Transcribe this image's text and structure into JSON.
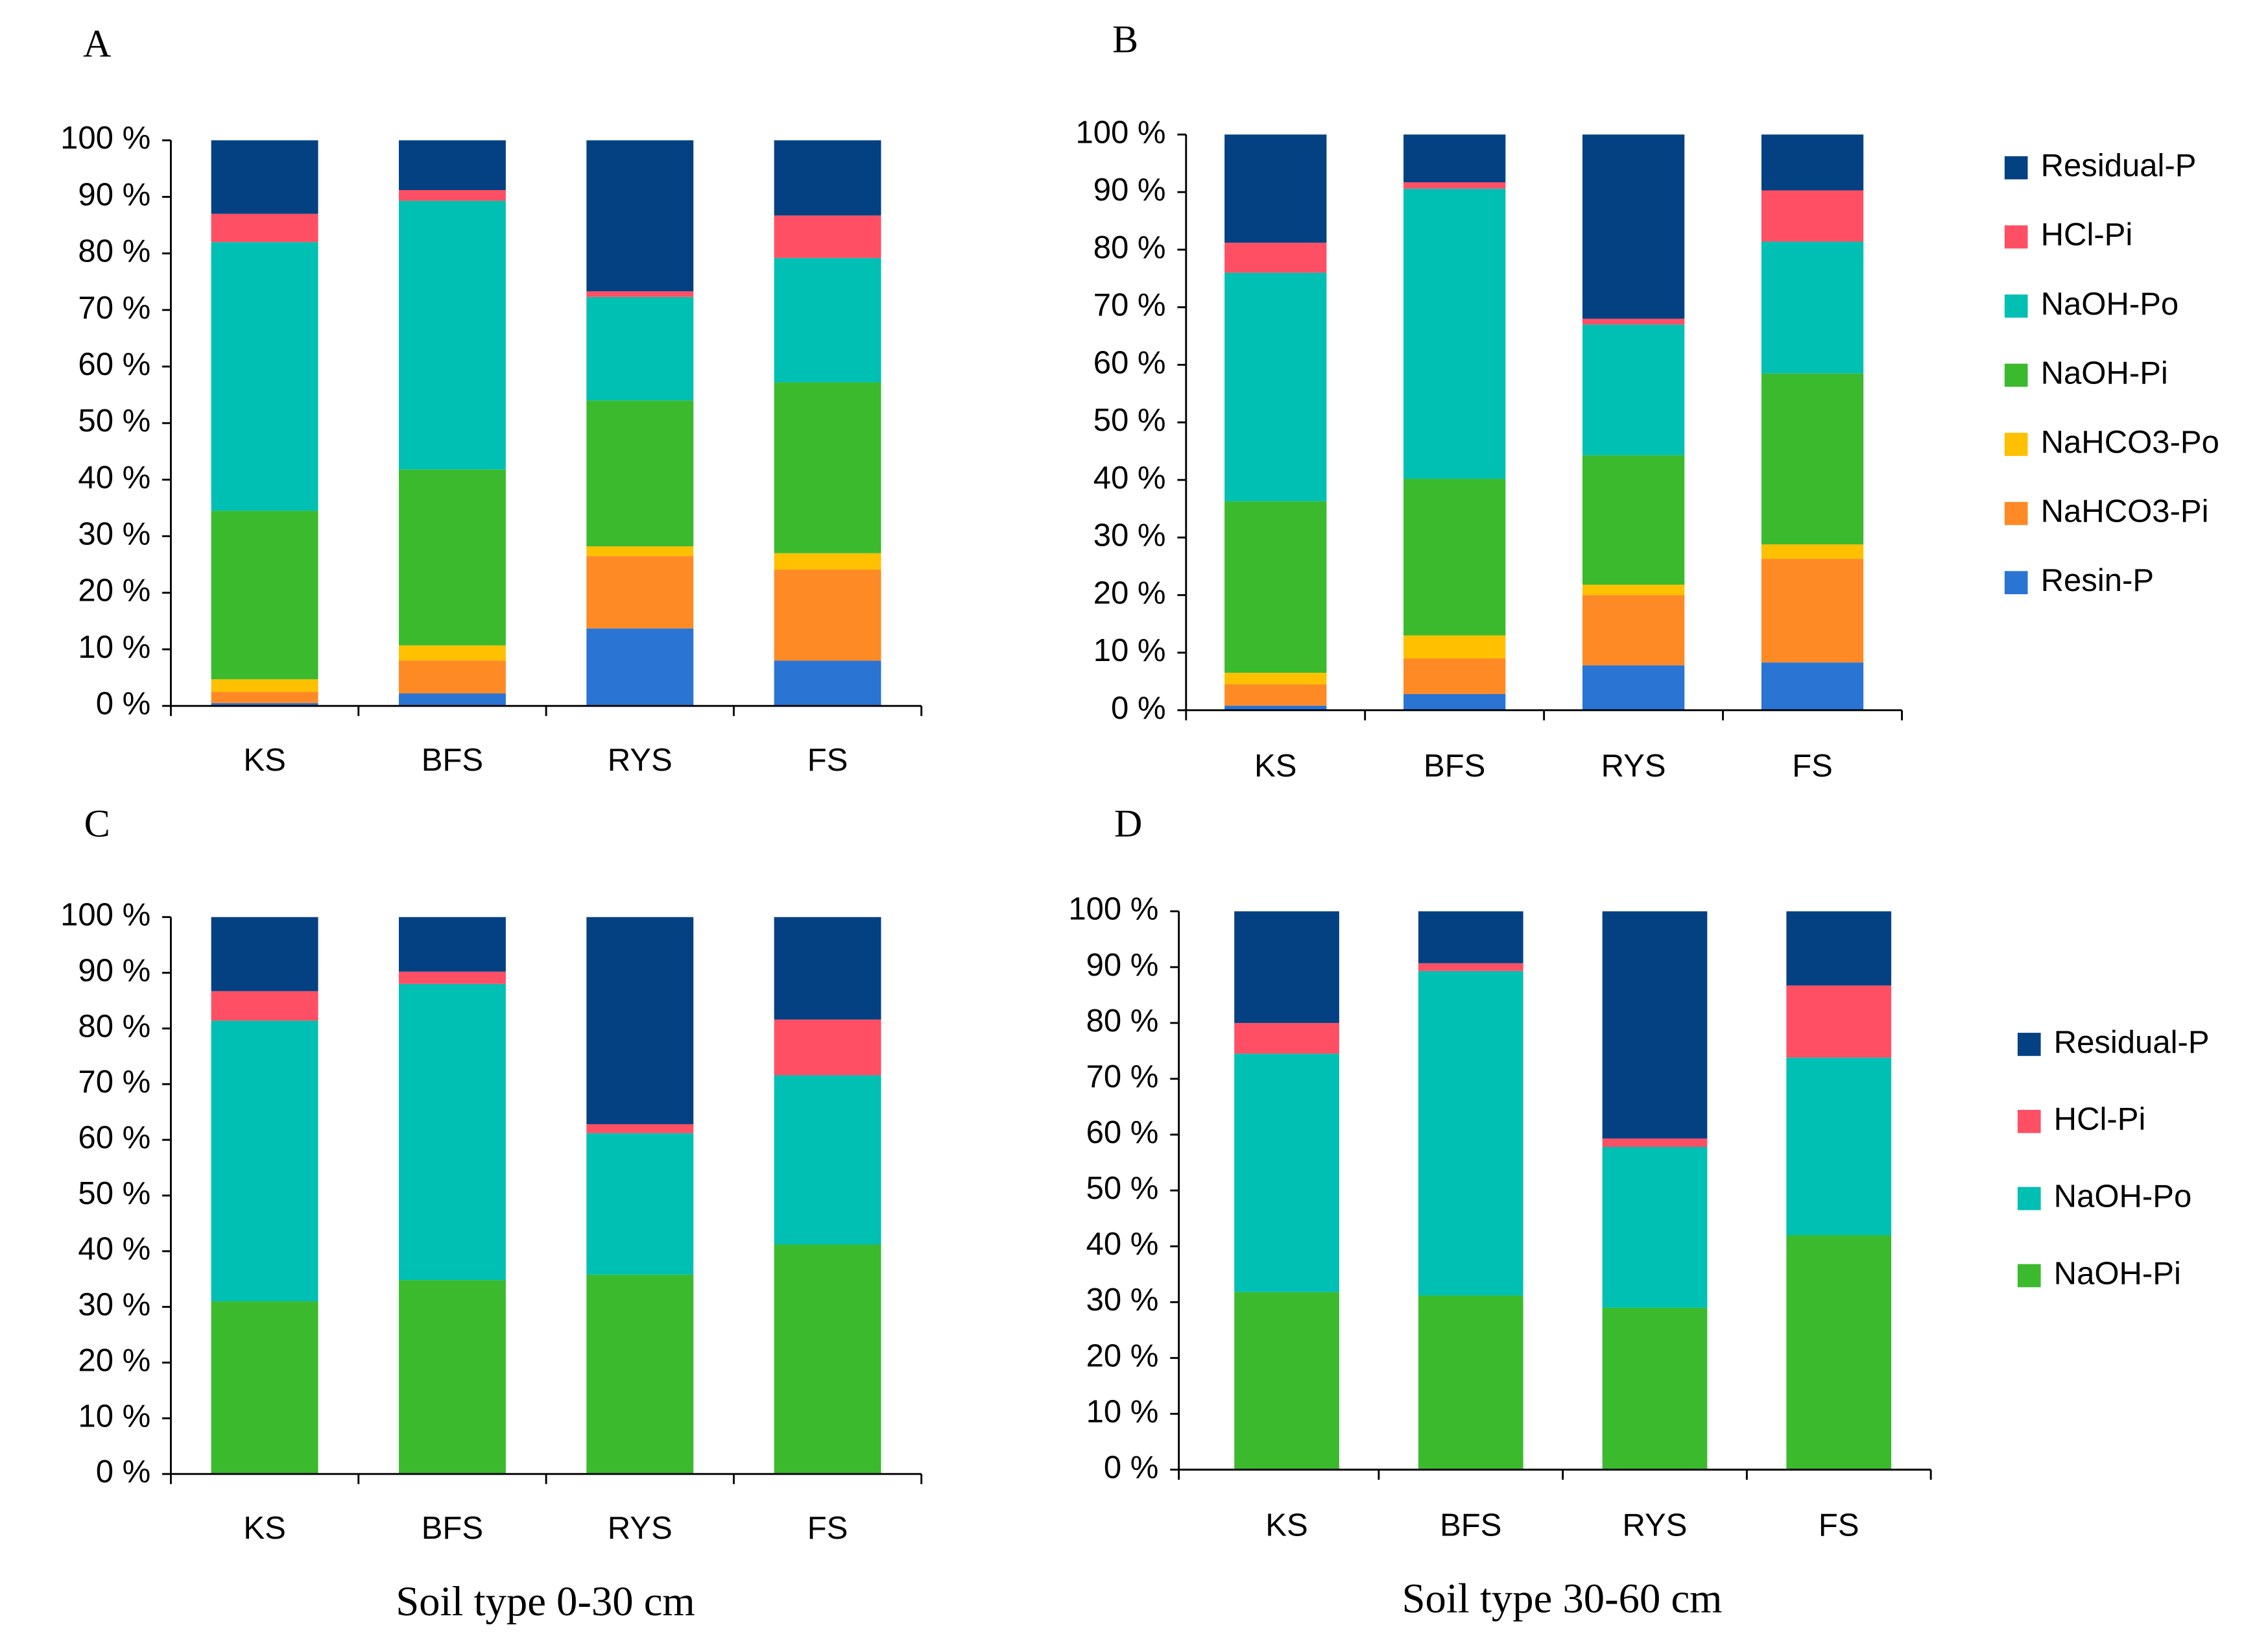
{
  "chart_data": [
    {
      "type": "bar",
      "stacked": true,
      "title": "A",
      "grid": false,
      "legend": "none",
      "categories": [
        "KS",
        "BFS",
        "RYS",
        "FS"
      ],
      "ylim": [
        0,
        100
      ],
      "yticks": [
        {
          "value": 0,
          "label": "0 %"
        },
        {
          "value": 10,
          "label": "10 %"
        },
        {
          "value": 20,
          "label": "20 %"
        },
        {
          "value": 30,
          "label": "30 %"
        },
        {
          "value": 40,
          "label": "40 %"
        },
        {
          "value": 50,
          "label": "50 %"
        },
        {
          "value": 60,
          "label": "60 %"
        },
        {
          "value": 70,
          "label": "70 %"
        },
        {
          "value": 80,
          "label": "80 %"
        },
        {
          "value": 90,
          "label": "90 %"
        },
        {
          "value": 100,
          "label": "100 %"
        }
      ],
      "series": [
        {
          "color": "#2a74d4",
          "values": [
            0.5,
            2.2,
            13.7,
            8
          ]
        },
        {
          "color": "#fe8a26",
          "values": [
            2,
            5.8,
            12.8,
            16.1
          ]
        },
        {
          "color": "#ffc000",
          "values": [
            2.2,
            2.7,
            1.7,
            2.9
          ]
        },
        {
          "color": "#3bba2e",
          "values": [
            29.8,
            31.1,
            25.8,
            30.2
          ]
        },
        {
          "color": "#00bfb3",
          "values": [
            47.5,
            47.5,
            18.3,
            22
          ]
        },
        {
          "color": "#ff4f64",
          "values": [
            5,
            1.9,
            1,
            7.5
          ]
        },
        {
          "color": "#034183",
          "values": [
            13,
            8.8,
            26.7,
            13.3
          ]
        }
      ]
    },
    {
      "type": "bar",
      "stacked": true,
      "title": "B",
      "grid": false,
      "legend": "right",
      "categories": [
        "KS",
        "BFS",
        "RYS",
        "FS"
      ],
      "ylim": [
        0,
        100
      ],
      "yticks": [
        {
          "value": 0,
          "label": "0 %"
        },
        {
          "value": 10,
          "label": "10 %"
        },
        {
          "value": 20,
          "label": "20 %"
        },
        {
          "value": 30,
          "label": "30 %"
        },
        {
          "value": 40,
          "label": "40 %"
        },
        {
          "value": 50,
          "label": "50 %"
        },
        {
          "value": 60,
          "label": "60 %"
        },
        {
          "value": 70,
          "label": "70 %"
        },
        {
          "value": 80,
          "label": "80 %"
        },
        {
          "value": 90,
          "label": "90 %"
        },
        {
          "value": 100,
          "label": "100 %"
        }
      ],
      "series": [
        {
          "name": "Resin-P",
          "color": "#2a74d4",
          "values": [
            0.8,
            2.8,
            7.8,
            8.3
          ]
        },
        {
          "name": "NaHCO3-Pi",
          "color": "#fe8a26",
          "values": [
            3.7,
            6.2,
            12.2,
            18
          ]
        },
        {
          "name": "NaHCO3-Po",
          "color": "#ffc000",
          "values": [
            2,
            4,
            1.8,
            2.5
          ]
        },
        {
          "name": "NaOH-Pi",
          "color": "#3bba2e",
          "values": [
            29.8,
            27.2,
            22.5,
            29.7
          ]
        },
        {
          "name": "NaOH-Po",
          "color": "#00bfb3",
          "values": [
            39.7,
            50.4,
            22.7,
            22.9
          ]
        },
        {
          "name": "HCl-Pi",
          "color": "#ff4f64",
          "values": [
            5.2,
            1.1,
            1,
            8.9
          ]
        },
        {
          "name": "Residual-P",
          "color": "#034183",
          "values": [
            18.8,
            8.3,
            32,
            9.7
          ]
        }
      ]
    },
    {
      "type": "bar",
      "stacked": true,
      "title": "C",
      "xlabel": "Soil type 0-30 cm",
      "grid": false,
      "legend": "none",
      "categories": [
        "KS",
        "BFS",
        "RYS",
        "FS"
      ],
      "ylim": [
        0,
        100
      ],
      "yticks": [
        {
          "value": 0,
          "label": "0 %"
        },
        {
          "value": 10,
          "label": "10 %"
        },
        {
          "value": 20,
          "label": "20 %"
        },
        {
          "value": 30,
          "label": "30 %"
        },
        {
          "value": 40,
          "label": "40 %"
        },
        {
          "value": 50,
          "label": "50 %"
        },
        {
          "value": 60,
          "label": "60 %"
        },
        {
          "value": 70,
          "label": "70 %"
        },
        {
          "value": 80,
          "label": "80 %"
        },
        {
          "value": 90,
          "label": "90 %"
        },
        {
          "value": 100,
          "label": "100 %"
        }
      ],
      "series": [
        {
          "color": "#3bba2e",
          "values": [
            31,
            34.8,
            35.8,
            41.2
          ]
        },
        {
          "color": "#00bfb3",
          "values": [
            50.4,
            53.2,
            25.4,
            30.4
          ]
        },
        {
          "color": "#ff4f64",
          "values": [
            5.3,
            2.2,
            1.6,
            10
          ]
        },
        {
          "color": "#034183",
          "values": [
            13.3,
            9.8,
            37.2,
            18.4
          ]
        }
      ]
    },
    {
      "type": "bar",
      "stacked": true,
      "title": "D",
      "xlabel": "Soil type 30-60 cm",
      "grid": false,
      "legend": "right",
      "categories": [
        "KS",
        "BFS",
        "RYS",
        "FS"
      ],
      "ylim": [
        0,
        100
      ],
      "yticks": [
        {
          "value": 0,
          "label": "0 %"
        },
        {
          "value": 10,
          "label": "10 %"
        },
        {
          "value": 20,
          "label": "20 %"
        },
        {
          "value": 30,
          "label": "30 %"
        },
        {
          "value": 40,
          "label": "40 %"
        },
        {
          "value": 50,
          "label": "50 %"
        },
        {
          "value": 60,
          "label": "60 %"
        },
        {
          "value": 70,
          "label": "70 %"
        },
        {
          "value": 80,
          "label": "80 %"
        },
        {
          "value": 90,
          "label": "90 %"
        },
        {
          "value": 100,
          "label": "100 %"
        }
      ],
      "series": [
        {
          "name": "NaOH-Pi",
          "color": "#3bba2e",
          "values": [
            31.8,
            31.2,
            29,
            42
          ]
        },
        {
          "name": "NaOH-Po",
          "color": "#00bfb3",
          "values": [
            42.7,
            58.1,
            28.8,
            31.8
          ]
        },
        {
          "name": "HCl-Pi",
          "color": "#ff4f64",
          "values": [
            5.5,
            1.4,
            1.5,
            12.9
          ]
        },
        {
          "name": "Residual-P",
          "color": "#034183",
          "values": [
            20,
            9.3,
            40.7,
            13.3
          ]
        }
      ]
    }
  ]
}
